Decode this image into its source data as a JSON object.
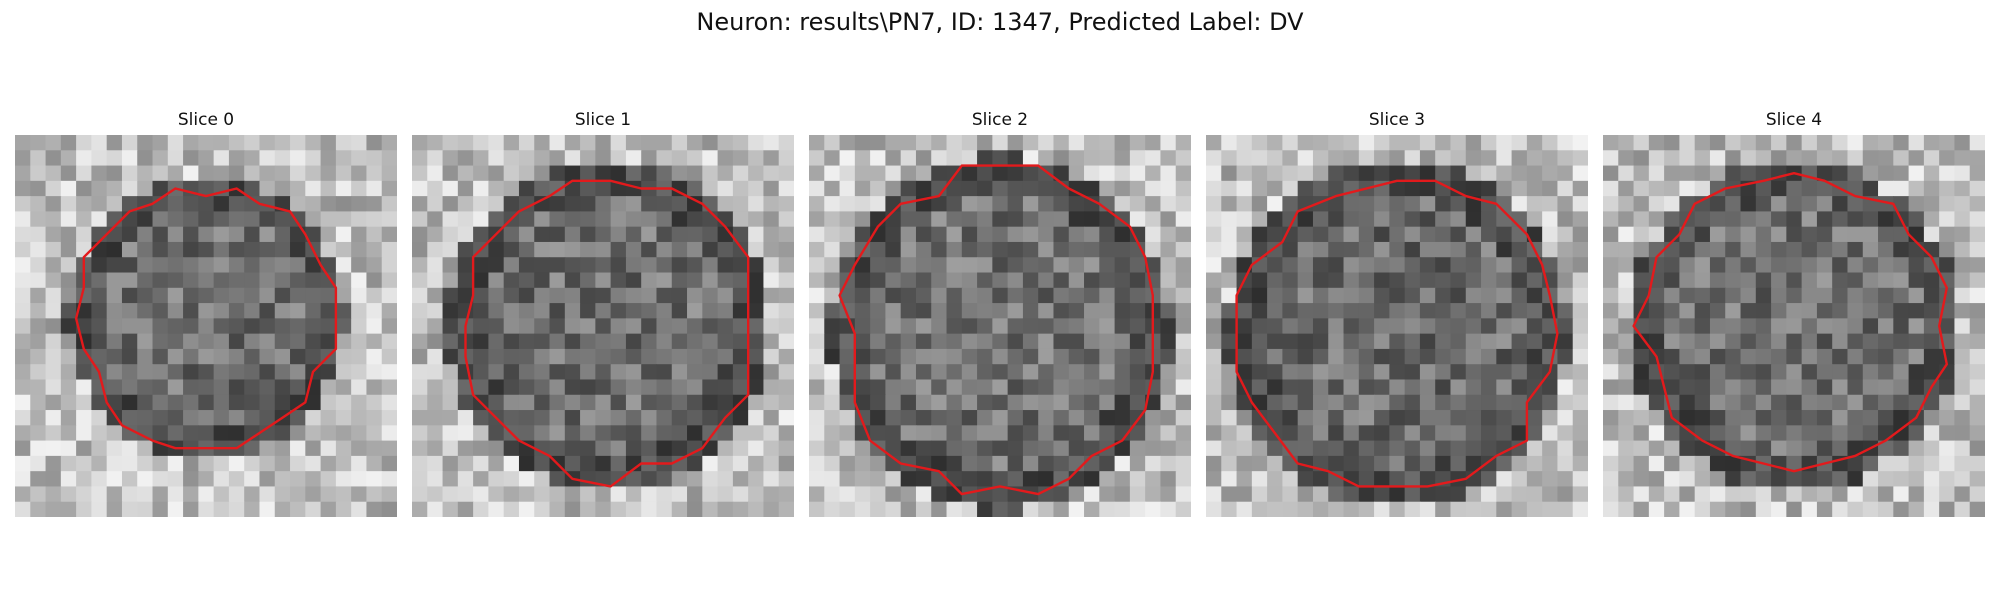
{
  "figure": {
    "title": "Neuron: results\\PN7, ID: 1347, Predicted Label: DV"
  },
  "overlay_color": "#e31a1c",
  "colormap": "gray",
  "panels": [
    {
      "title": "Slice 0",
      "seed": 11
    },
    {
      "title": "Slice 1",
      "seed": 23
    },
    {
      "title": "Slice 2",
      "seed": 37
    },
    {
      "title": "Slice 3",
      "seed": 51
    },
    {
      "title": "Slice 4",
      "seed": 67
    }
  ]
}
